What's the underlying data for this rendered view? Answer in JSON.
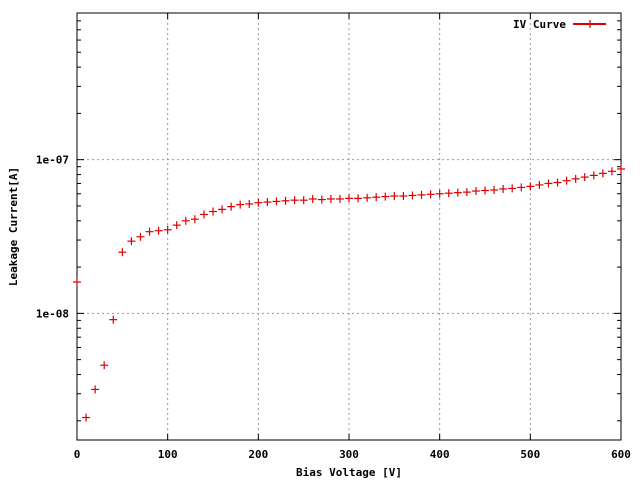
{
  "chart_data": {
    "type": "scatter",
    "xlabel": "Bias Voltage [V]",
    "ylabel": "Leakage Current[A]",
    "xlim": [
      0,
      600
    ],
    "ylim": [
      1.5e-09,
      9e-07
    ],
    "y_scale": "log",
    "grid": true,
    "legend_position": "top-right",
    "x_ticks": [
      "0",
      "100",
      "200",
      "300",
      "400",
      "500",
      "600"
    ],
    "y_ticks": [
      {
        "value": 1e-07,
        "label": "1e-07"
      },
      {
        "value": 1e-08,
        "label": "1e-08"
      }
    ],
    "series": [
      {
        "name": "IV Curve",
        "color": "#dd0000",
        "marker": "plus",
        "x": [
          0,
          10,
          20,
          30,
          40,
          50,
          60,
          70,
          80,
          90,
          100,
          110,
          120,
          130,
          140,
          150,
          160,
          170,
          180,
          190,
          200,
          210,
          220,
          230,
          240,
          250,
          260,
          270,
          280,
          290,
          300,
          310,
          320,
          330,
          340,
          350,
          360,
          370,
          380,
          390,
          400,
          410,
          420,
          430,
          440,
          450,
          460,
          470,
          480,
          490,
          500,
          510,
          520,
          530,
          540,
          550,
          560,
          570,
          580,
          590,
          600
        ],
        "y": [
          1.6e-08,
          2.1e-09,
          3.2e-09,
          4.6e-09,
          9.1e-09,
          2.5e-08,
          2.95e-08,
          3.15e-08,
          3.4e-08,
          3.45e-08,
          3.5e-08,
          3.75e-08,
          4e-08,
          4.1e-08,
          4.4e-08,
          4.6e-08,
          4.75e-08,
          4.95e-08,
          5.1e-08,
          5.15e-08,
          5.25e-08,
          5.3e-08,
          5.35e-08,
          5.4e-08,
          5.45e-08,
          5.45e-08,
          5.55e-08,
          5.5e-08,
          5.55e-08,
          5.55e-08,
          5.6e-08,
          5.6e-08,
          5.65e-08,
          5.7e-08,
          5.75e-08,
          5.8e-08,
          5.8e-08,
          5.85e-08,
          5.9e-08,
          5.95e-08,
          6e-08,
          6.05e-08,
          6.1e-08,
          6.15e-08,
          6.25e-08,
          6.3e-08,
          6.35e-08,
          6.45e-08,
          6.5e-08,
          6.6e-08,
          6.7e-08,
          6.85e-08,
          7e-08,
          7.1e-08,
          7.3e-08,
          7.5e-08,
          7.7e-08,
          7.9e-08,
          8.15e-08,
          8.4e-08,
          8.7e-08
        ]
      }
    ]
  }
}
